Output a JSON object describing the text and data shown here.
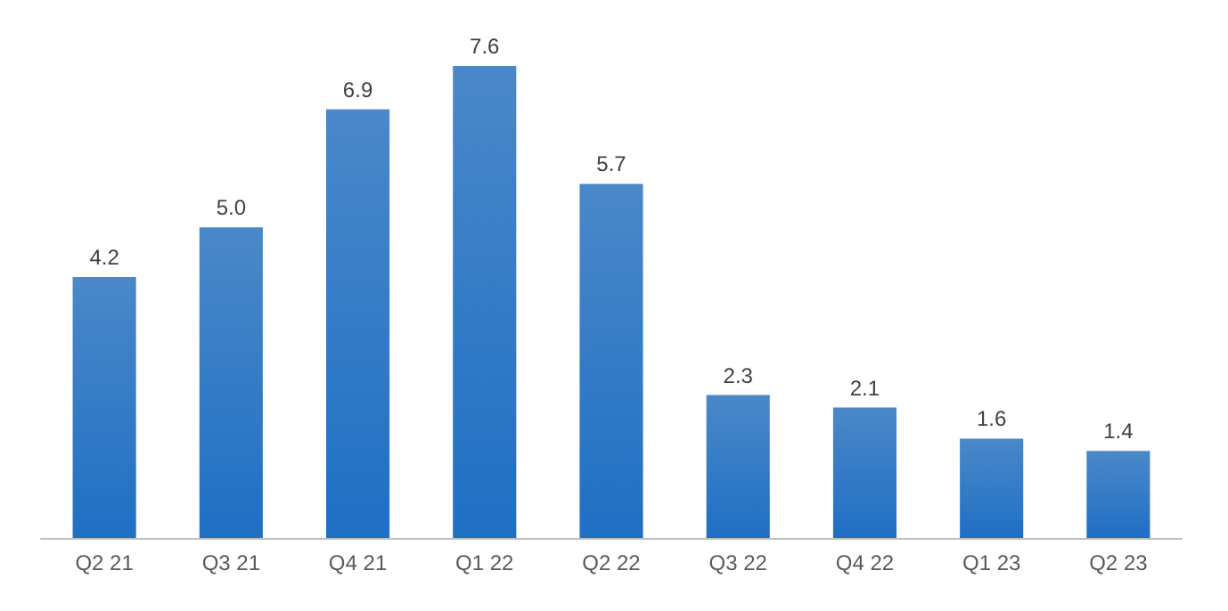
{
  "chart_data": {
    "type": "bar",
    "categories": [
      "Q2 21",
      "Q3 21",
      "Q4 21",
      "Q1 22",
      "Q2 22",
      "Q3 22",
      "Q4 22",
      "Q1 23",
      "Q2 23"
    ],
    "values": [
      4.2,
      5.0,
      6.9,
      7.6,
      5.7,
      2.3,
      2.1,
      1.6,
      1.4
    ],
    "value_labels": [
      "4.2",
      "5.0",
      "6.9",
      "7.6",
      "5.7",
      "2.3",
      "2.1",
      "1.6",
      "1.4"
    ],
    "color": "#1f6fc4"
  }
}
